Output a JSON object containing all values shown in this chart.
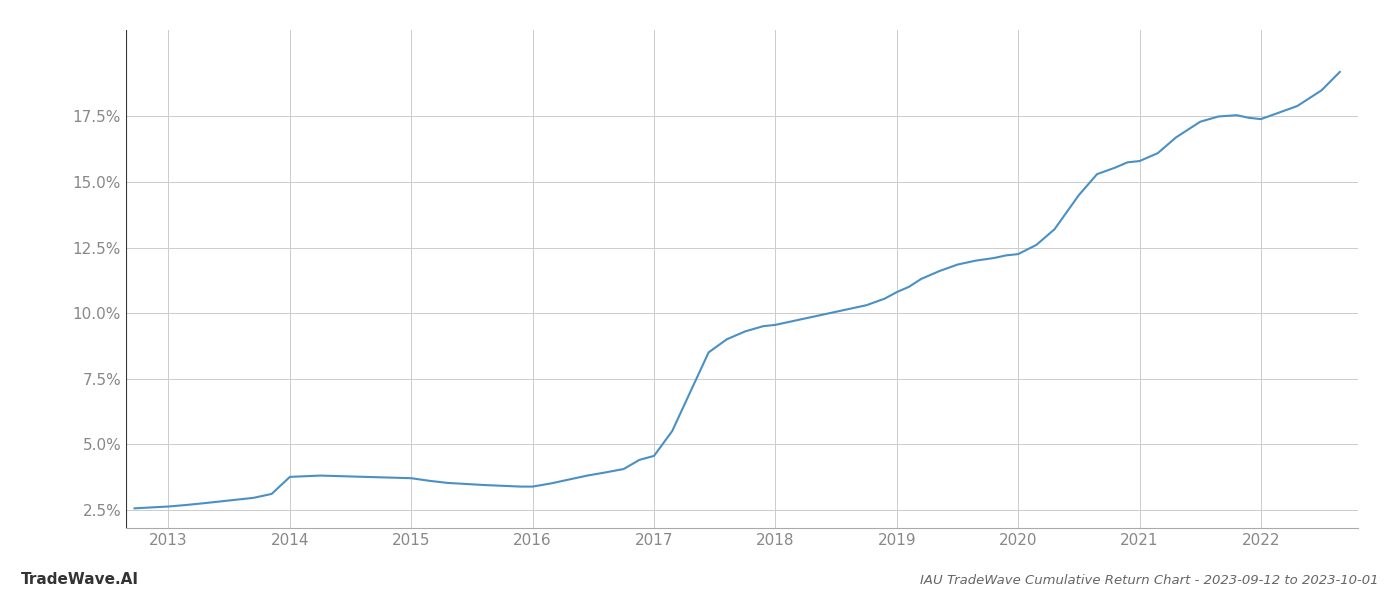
{
  "title": "IAU TradeWave Cumulative Return Chart - 2023-09-12 to 2023-10-01",
  "watermark": "TradeWave.AI",
  "line_color": "#4a90c4",
  "background_color": "#ffffff",
  "grid_color": "#cccccc",
  "x_years": [
    2013,
    2014,
    2015,
    2016,
    2017,
    2018,
    2019,
    2020,
    2021,
    2022
  ],
  "x_data": [
    2012.72,
    2013.0,
    2013.15,
    2013.3,
    2013.5,
    2013.7,
    2013.85,
    2014.0,
    2014.15,
    2014.25,
    2014.4,
    2014.55,
    2014.7,
    2014.85,
    2015.0,
    2015.15,
    2015.3,
    2015.45,
    2015.6,
    2015.75,
    2015.9,
    2016.0,
    2016.15,
    2016.3,
    2016.45,
    2016.6,
    2016.75,
    2016.88,
    2017.0,
    2017.15,
    2017.3,
    2017.45,
    2017.6,
    2017.75,
    2017.9,
    2018.0,
    2018.15,
    2018.3,
    2018.45,
    2018.6,
    2018.75,
    2018.9,
    2019.0,
    2019.1,
    2019.2,
    2019.35,
    2019.5,
    2019.65,
    2019.8,
    2019.9,
    2020.0,
    2020.15,
    2020.3,
    2020.5,
    2020.65,
    2020.8,
    2020.9,
    2021.0,
    2021.15,
    2021.3,
    2021.5,
    2021.65,
    2021.8,
    2021.9,
    2022.0,
    2022.15,
    2022.3,
    2022.5,
    2022.65
  ],
  "y_data": [
    2.55,
    2.62,
    2.68,
    2.75,
    2.85,
    2.95,
    3.1,
    3.75,
    3.78,
    3.8,
    3.78,
    3.76,
    3.74,
    3.72,
    3.7,
    3.6,
    3.52,
    3.48,
    3.44,
    3.41,
    3.38,
    3.38,
    3.5,
    3.65,
    3.8,
    3.92,
    4.05,
    4.4,
    4.55,
    5.5,
    7.0,
    8.5,
    9.0,
    9.3,
    9.5,
    9.55,
    9.7,
    9.85,
    10.0,
    10.15,
    10.3,
    10.55,
    10.8,
    11.0,
    11.3,
    11.6,
    11.85,
    12.0,
    12.1,
    12.2,
    12.25,
    12.6,
    13.2,
    14.5,
    15.3,
    15.55,
    15.75,
    15.8,
    16.1,
    16.7,
    17.3,
    17.5,
    17.55,
    17.45,
    17.4,
    17.65,
    17.9,
    18.5,
    19.2
  ],
  "yticks": [
    2.5,
    5.0,
    7.5,
    10.0,
    12.5,
    15.0,
    17.5
  ],
  "ylim": [
    1.8,
    20.8
  ],
  "xlim": [
    2012.65,
    2022.8
  ],
  "title_fontsize": 9.5,
  "tick_fontsize": 11,
  "watermark_fontsize": 11,
  "line_width": 1.5,
  "title_color": "#666666",
  "tick_color": "#888888",
  "watermark_color": "#333333"
}
